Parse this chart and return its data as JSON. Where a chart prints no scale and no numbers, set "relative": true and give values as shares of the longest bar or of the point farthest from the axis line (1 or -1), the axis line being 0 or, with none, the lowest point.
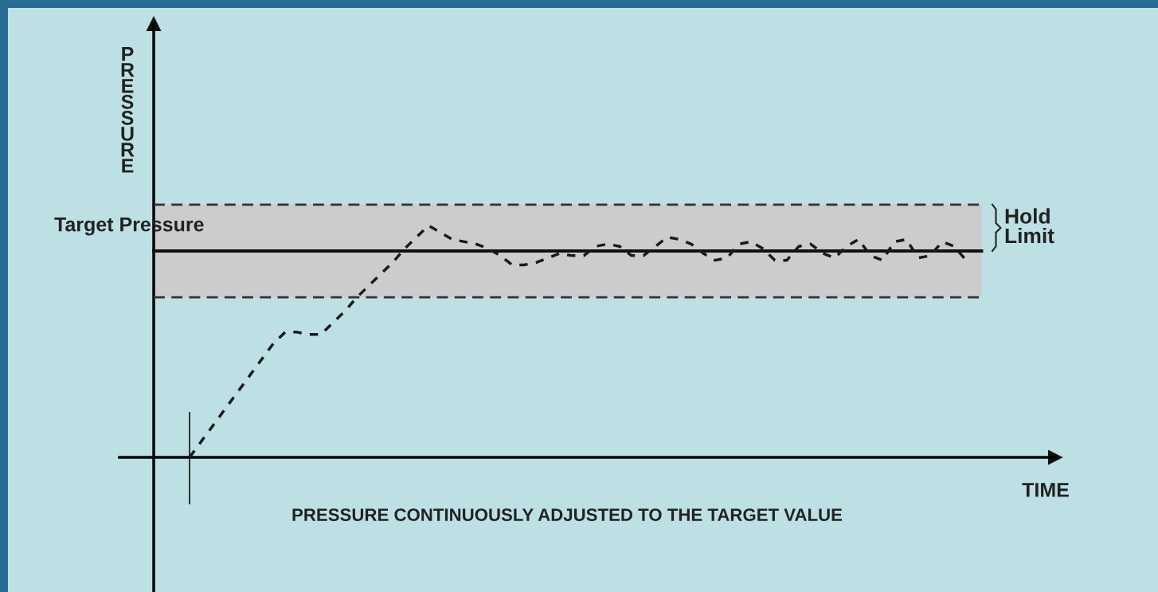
{
  "chart_data": {
    "type": "line",
    "relative": true,
    "xlabel": "TIME",
    "ylabel": "PRESSURE",
    "categories": [
      null,
      null,
      null,
      null,
      null,
      null,
      null,
      null,
      null,
      null,
      null,
      null,
      null,
      null,
      null,
      null,
      null,
      null,
      null,
      null,
      null,
      null,
      null,
      null,
      null,
      null,
      null,
      null,
      null,
      null,
      null,
      null,
      null,
      null,
      null,
      null,
      null,
      null,
      null,
      null,
      null,
      null,
      null,
      null,
      null,
      null,
      null,
      null,
      null,
      null,
      null,
      null,
      null,
      null,
      null,
      null,
      null,
      null,
      null,
      null,
      null,
      null,
      null,
      null,
      null,
      null
    ],
    "series": [
      {
        "color": "#1a1a1a",
        "values": [
          0.0,
          0.07,
          0.14,
          0.21,
          0.28,
          0.35,
          0.42,
          0.49,
          0.54,
          0.54,
          0.53,
          0.53,
          0.58,
          0.63,
          0.69,
          0.74,
          0.79,
          0.84,
          0.9,
          0.95,
          1.0,
          0.97,
          0.94,
          0.93,
          0.92,
          0.9,
          0.87,
          0.83,
          0.83,
          0.84,
          0.86,
          0.88,
          0.87,
          0.87,
          0.91,
          0.92,
          0.91,
          0.87,
          0.87,
          0.91,
          0.95,
          0.94,
          0.92,
          0.88,
          0.85,
          0.86,
          0.92,
          0.93,
          0.9,
          0.85,
          0.85,
          0.91,
          0.92,
          0.88,
          0.86,
          0.91,
          0.94,
          0.87,
          0.85,
          0.93,
          0.94,
          0.86,
          0.87,
          0.93,
          0.91,
          0.85
        ]
      }
    ],
    "line_style": "dashed",
    "marker": "none",
    "legend": false,
    "ref_lines": [
      {
        "axis": "y",
        "value": 0.89,
        "label": "Target Pressure",
        "color": "#111111",
        "line_style": "solid"
      },
      {
        "axis": "y",
        "value": 0.69,
        "color": "#333333",
        "line_style": "dashed"
      },
      {
        "axis": "y",
        "value": 1.09,
        "color": "#333333",
        "line_style": "dashed"
      }
    ],
    "bands": [
      {
        "axis": "y",
        "from": 0.69,
        "to": 1.09,
        "label": "Hold\nLimit",
        "color": "#cccccc"
      }
    ],
    "annotations": [
      "PRESSURE CONTINUOUSLY ADJUSTED TO THE TARGET VALUE"
    ]
  }
}
